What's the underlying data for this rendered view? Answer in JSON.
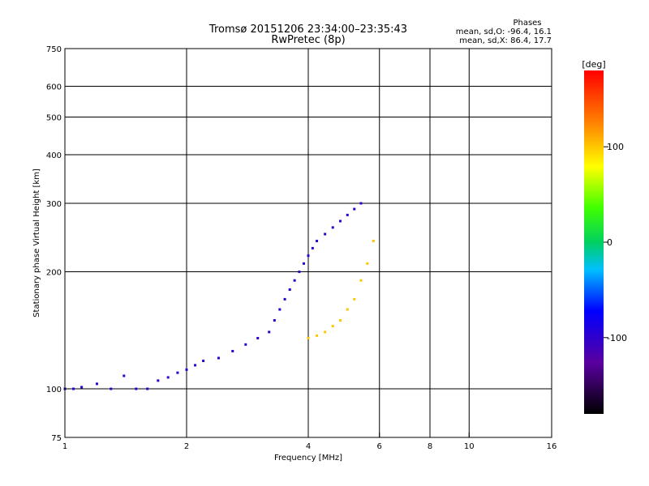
{
  "chart_data": {
    "type": "scatter",
    "title": "Tromsø 20151206 23:34:00–23:35:43",
    "subtitle": "RwPretec (8p)",
    "xlabel": "Frequency [MHz]",
    "ylabel": "Stationary phase Virtual Height [km]",
    "x_scale": "log",
    "y_scale": "log",
    "xlim": [
      1,
      16
    ],
    "ylim": [
      75,
      750
    ],
    "x_ticks": [
      1,
      2,
      4,
      6,
      8,
      10,
      16
    ],
    "x_tick_labels": [
      "1",
      "2",
      "4",
      "6",
      "8",
      "10",
      "16"
    ],
    "y_ticks": [
      75,
      100,
      200,
      300,
      400,
      500,
      600,
      750
    ],
    "y_tick_labels": [
      "75",
      "100",
      "200",
      "300",
      "400",
      "500",
      "600",
      "750"
    ],
    "grid": true,
    "stats": {
      "heading": "Phases",
      "line_o": "mean, sd,O: -96.4, 16.1",
      "line_x": "mean, sd,X:  86.4, 17.7"
    },
    "colorbar": {
      "label": "[deg]",
      "ticks": [
        100,
        0,
        -100
      ],
      "tick_labels": [
        "100",
        "0",
        "-100"
      ],
      "range": [
        -180,
        180
      ]
    },
    "series": [
      {
        "trace": "O-mode (blue / -100 deg)",
        "color_value": -100,
        "x": [
          1.0,
          1.05,
          1.1,
          1.2,
          1.3,
          1.4,
          1.5,
          1.6,
          1.7,
          1.8,
          1.9,
          2.0,
          2.1,
          2.2,
          2.4,
          2.6,
          2.8,
          3.0,
          3.2,
          3.3,
          3.4,
          3.5,
          3.6,
          3.7,
          3.8,
          3.9,
          4.0,
          4.1,
          4.2,
          4.4,
          4.6,
          4.8,
          5.0,
          5.2,
          5.4
        ],
        "y": [
          100,
          100,
          101,
          103,
          100,
          108,
          100,
          100,
          105,
          107,
          110,
          112,
          115,
          118,
          120,
          125,
          130,
          135,
          140,
          150,
          160,
          170,
          180,
          190,
          200,
          210,
          220,
          230,
          240,
          250,
          260,
          270,
          280,
          290,
          300
        ]
      },
      {
        "trace": "X-mode (yellow / +100 deg)",
        "color_value": 100,
        "x": [
          4.0,
          4.2,
          4.4,
          4.6,
          4.8,
          5.0,
          5.2,
          5.4,
          5.6,
          5.8
        ],
        "y": [
          135,
          137,
          140,
          145,
          150,
          160,
          170,
          190,
          210,
          240
        ]
      }
    ]
  }
}
